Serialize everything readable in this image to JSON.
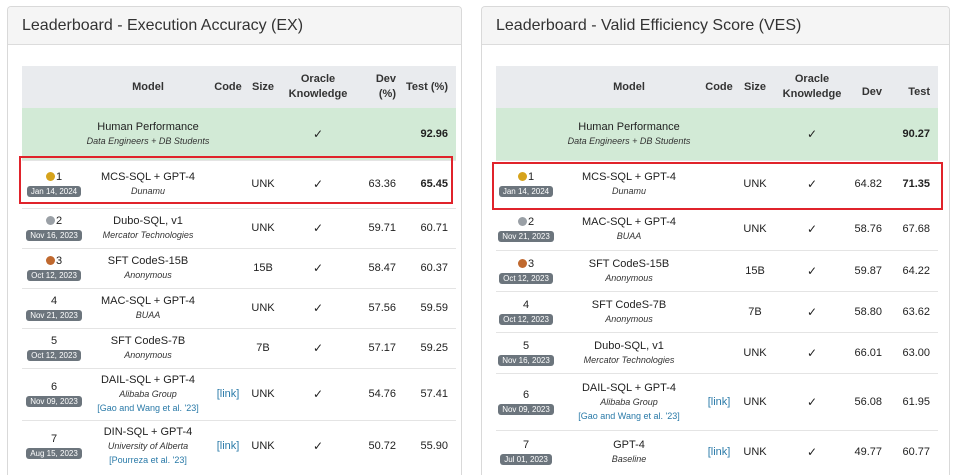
{
  "left": {
    "title": "Leaderboard - Execution Accuracy (EX)",
    "headers": {
      "model": "Model",
      "code": "Code",
      "size": "Size",
      "oracle": "Oracle Knowledge",
      "dev": "Dev (%)",
      "test": "Test (%)"
    },
    "human": {
      "name": "Human Performance",
      "org": "Data Engineers + DB Students",
      "oracle": "✓",
      "test": "92.96"
    },
    "rows": [
      {
        "rank": "1",
        "medal": "gold",
        "date": "Jan 14, 2024",
        "model": "MCS-SQL + GPT-4",
        "org": "Dunamu",
        "cite": "",
        "code": "",
        "size": "UNK",
        "oracle": "✓",
        "dev": "63.36",
        "test": "65.45"
      },
      {
        "rank": "2",
        "medal": "silver",
        "date": "Nov 16, 2023",
        "model": "Dubo-SQL, v1",
        "org": "Mercator Technologies",
        "cite": "",
        "code": "",
        "size": "UNK",
        "oracle": "✓",
        "dev": "59.71",
        "test": "60.71"
      },
      {
        "rank": "3",
        "medal": "bronze",
        "date": "Oct 12, 2023",
        "model": "SFT CodeS-15B",
        "org": "Anonymous",
        "cite": "",
        "code": "",
        "size": "15B",
        "oracle": "✓",
        "dev": "58.47",
        "test": "60.37"
      },
      {
        "rank": "4",
        "medal": "",
        "date": "Nov 21, 2023",
        "model": "MAC-SQL + GPT-4",
        "org": "BUAA",
        "cite": "",
        "code": "",
        "size": "UNK",
        "oracle": "✓",
        "dev": "57.56",
        "test": "59.59"
      },
      {
        "rank": "5",
        "medal": "",
        "date": "Oct 12, 2023",
        "model": "SFT CodeS-7B",
        "org": "Anonymous",
        "cite": "",
        "code": "",
        "size": "7B",
        "oracle": "✓",
        "dev": "57.17",
        "test": "59.25"
      },
      {
        "rank": "6",
        "medal": "",
        "date": "Nov 09, 2023",
        "model": "DAIL-SQL + GPT-4",
        "org": "Alibaba Group",
        "cite": "[Gao and Wang et al. '23]",
        "code": "[link]",
        "size": "UNK",
        "oracle": "✓",
        "dev": "54.76",
        "test": "57.41"
      },
      {
        "rank": "7",
        "medal": "",
        "date": "Aug 15, 2023",
        "model": "DIN-SQL + GPT-4",
        "org": "University of Alberta",
        "cite": "[Pourreza et al. '23]",
        "code": "[link]",
        "size": "UNK",
        "oracle": "✓",
        "dev": "50.72",
        "test": "55.90"
      }
    ]
  },
  "right": {
    "title": "Leaderboard - Valid Efficiency Score (VES)",
    "headers": {
      "model": "Model",
      "code": "Code",
      "size": "Size",
      "oracle": "Oracle Knowledge",
      "dev": "Dev",
      "test": "Test"
    },
    "human": {
      "name": "Human Performance",
      "org": "Data Engineers + DB Students",
      "oracle": "✓",
      "test": "90.27"
    },
    "rows": [
      {
        "rank": "1",
        "medal": "gold",
        "date": "Jan 14, 2024",
        "model": "MCS-SQL + GPT-4",
        "org": "Dunamu",
        "cite": "",
        "code": "",
        "size": "UNK",
        "oracle": "✓",
        "dev": "64.82",
        "test": "71.35"
      },
      {
        "rank": "2",
        "medal": "silver",
        "date": "Nov 21, 2023",
        "model": "MAC-SQL + GPT-4",
        "org": "BUAA",
        "cite": "",
        "code": "",
        "size": "UNK",
        "oracle": "✓",
        "dev": "58.76",
        "test": "67.68"
      },
      {
        "rank": "3",
        "medal": "bronze",
        "date": "Oct 12, 2023",
        "model": "SFT CodeS-15B",
        "org": "Anonymous",
        "cite": "",
        "code": "",
        "size": "15B",
        "oracle": "✓",
        "dev": "59.87",
        "test": "64.22"
      },
      {
        "rank": "4",
        "medal": "",
        "date": "Oct 12, 2023",
        "model": "SFT CodeS-7B",
        "org": "Anonymous",
        "cite": "",
        "code": "",
        "size": "7B",
        "oracle": "✓",
        "dev": "58.80",
        "test": "63.62"
      },
      {
        "rank": "5",
        "medal": "",
        "date": "Nov 16, 2023",
        "model": "Dubo-SQL, v1",
        "org": "Mercator Technologies",
        "cite": "",
        "code": "",
        "size": "UNK",
        "oracle": "✓",
        "dev": "66.01",
        "test": "63.00"
      },
      {
        "rank": "6",
        "medal": "",
        "date": "Nov 09, 2023",
        "model": "DAIL-SQL + GPT-4",
        "org": "Alibaba Group",
        "cite": "[Gao and Wang et al. '23]",
        "code": "[link]",
        "size": "UNK",
        "oracle": "✓",
        "dev": "56.08",
        "test": "61.95"
      },
      {
        "rank": "7",
        "medal": "",
        "date": "Jul 01, 2023",
        "model": "GPT-4",
        "org": "Baseline",
        "cite": "",
        "code": "[link]",
        "size": "UNK",
        "oracle": "✓",
        "dev": "49.77",
        "test": "60.77"
      }
    ]
  },
  "colors": {
    "highlight": "#e0232b",
    "human_row": "#d2ead6",
    "header_bg": "#e9ebee",
    "date_badge": "#6c757d",
    "link": "#2a7aa8"
  },
  "icons": {
    "medal_gold": "trophy-icon",
    "medal_silver": "silver-medal-icon",
    "medal_bronze": "bronze-medal-icon"
  }
}
